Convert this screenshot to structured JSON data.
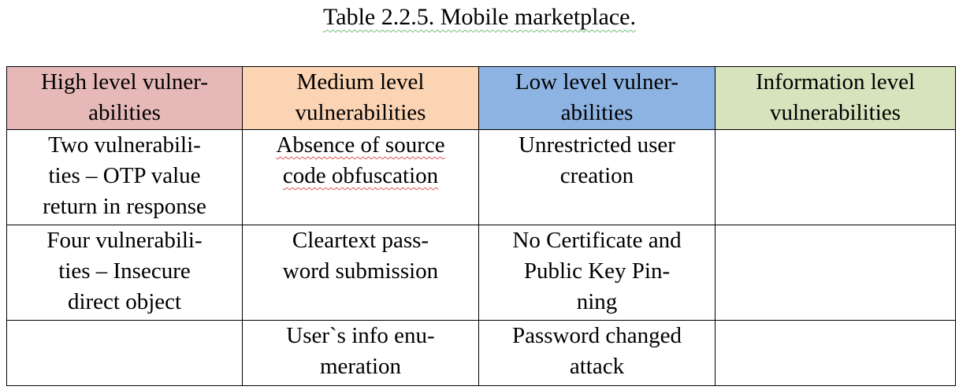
{
  "caption": "Table 2.2.5. Mobile marketplace.",
  "colors": {
    "high": "#e6b8b8",
    "medium": "#fbd4b4",
    "low": "#8db3e2",
    "information": "#d6e3bc"
  },
  "table": {
    "headers": [
      {
        "line1": "High level vulner-",
        "line2": "abilities"
      },
      {
        "line1": "Medium level",
        "line2": "vulnerabilities"
      },
      {
        "line1": "Low level vulner-",
        "line2": "abilities"
      },
      {
        "line1": "Information level",
        "line2": "vulnerabilities"
      }
    ],
    "rows": [
      {
        "c1": {
          "line1": "Two vulnerabili-",
          "line2": "ties – OTP value",
          "line3": "return in response"
        },
        "c2": {
          "line1": "Absence of source",
          "line2": "code obfuscation"
        },
        "c3": {
          "line1": "Unrestricted user",
          "line2": "creation"
        },
        "c4": ""
      },
      {
        "c1": {
          "line1": "Four vulnerabili-",
          "line2": "ties – Insecure",
          "line3": "direct object"
        },
        "c2": {
          "line1": "Cleartext pass-",
          "line2": "word submission"
        },
        "c3": {
          "line1": "No Certificate and",
          "line2": "Public Key Pin-",
          "line3": "ning"
        },
        "c4": ""
      },
      {
        "c1": "",
        "c2": {
          "line1": "User`s info enu-",
          "line2": "meration"
        },
        "c3": {
          "line1": "Password changed",
          "line2": "attack"
        },
        "c4": ""
      }
    ]
  }
}
